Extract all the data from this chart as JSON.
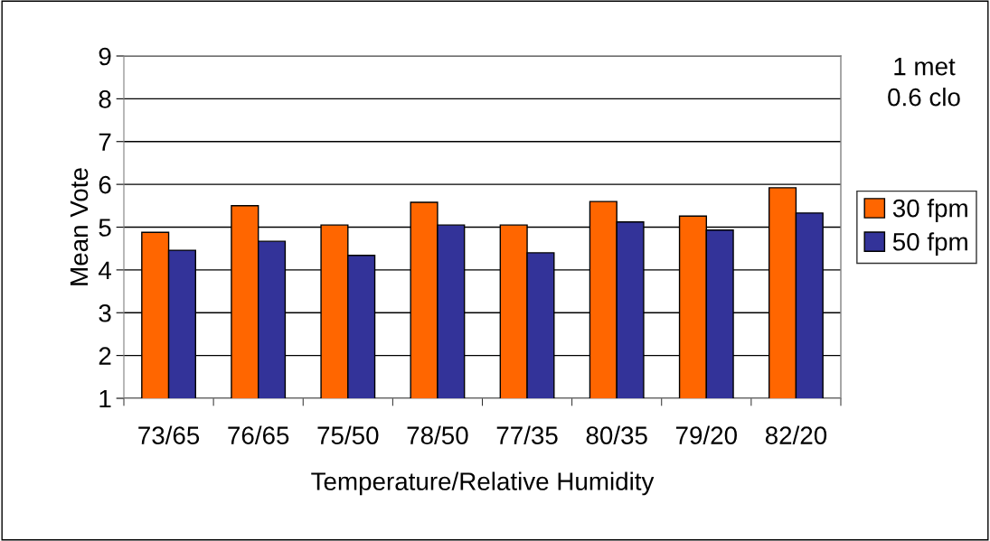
{
  "chart_data": {
    "type": "bar",
    "xlabel": "Temperature/Relative Humidity",
    "ylabel": "Mean Vote",
    "categories": [
      "73/65",
      "76/65",
      "75/50",
      "78/50",
      "77/35",
      "80/35",
      "79/20",
      "82/20"
    ],
    "series": [
      {
        "name": "30 fpm",
        "color": "#ff6600",
        "values": [
          4.88,
          5.5,
          5.05,
          5.58,
          5.05,
          5.6,
          5.26,
          5.92
        ]
      },
      {
        "name": "50 fpm",
        "color": "#333399",
        "values": [
          4.46,
          4.67,
          4.34,
          5.05,
          4.4,
          5.12,
          4.93,
          5.33
        ]
      }
    ],
    "ylim": [
      1,
      9
    ],
    "yticks": [
      1,
      2,
      3,
      4,
      5,
      6,
      7,
      8,
      9
    ],
    "grid": "y",
    "legend": "right",
    "annotations": [
      "1 met",
      "0.6 clo"
    ]
  }
}
